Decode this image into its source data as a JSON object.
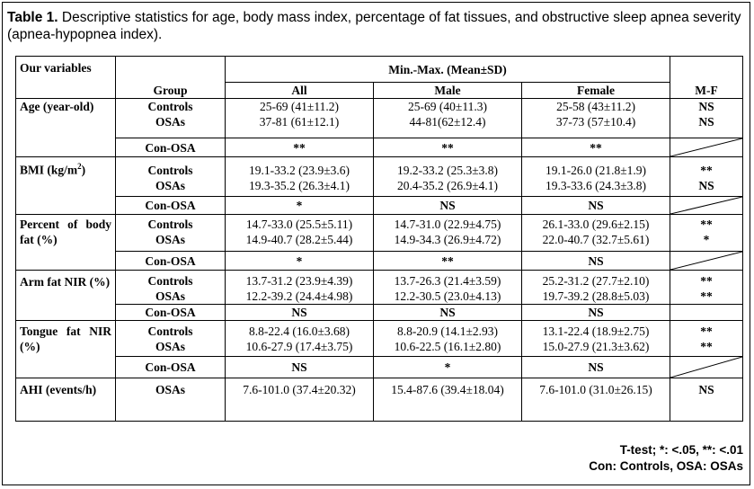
{
  "caption": {
    "label": "Table 1.",
    "text": " Descriptive statistics for age, body mass index, percentage of fat tissues, and obstructive sleep apnea severity (apnea-hypopnea index)."
  },
  "header": {
    "our_variables": "Our variables",
    "minmax": "Min.-Max. (Mean±SD)",
    "group": "Group",
    "all": "All",
    "male": "Male",
    "female": "Female",
    "mf": "M-F"
  },
  "rows": [
    {
      "variable": "Age (year-old)",
      "groups": [
        "Controls",
        "OSAs"
      ],
      "all": [
        "25-69 (41±11.2)",
        "37-81 (61±12.1)"
      ],
      "male": [
        "25-69 (40±11.3)",
        "44-81(62±12.4)"
      ],
      "female": [
        "25-58 (43±11.2)",
        "37-73 (57±10.4)"
      ],
      "mf": [
        "NS",
        "NS"
      ],
      "con_osa": {
        "label": "Con-OSA",
        "all": "**",
        "male": "**",
        "female": "**"
      }
    },
    {
      "variable": "BMI (kg/m",
      "variable_sup": "2",
      "variable_tail": ")",
      "groups": [
        "Controls",
        "OSAs"
      ],
      "all": [
        "19.1-33.2 (23.9±3.6)",
        "19.3-35.2 (26.3±4.1)"
      ],
      "male": [
        "19.2-33.2 (25.3±3.8)",
        "20.4-35.2 (26.9±4.1)"
      ],
      "female": [
        "19.1-26.0 (21.8±1.9)",
        "19.3-33.6 (24.3±3.8)"
      ],
      "mf": [
        "**",
        "NS"
      ],
      "con_osa": {
        "label": "Con-OSA",
        "all": "*",
        "male": "NS",
        "female": "NS"
      }
    },
    {
      "variable": "Percent of body fat (%)",
      "groups": [
        "Controls",
        "OSAs"
      ],
      "all": [
        "14.7-33.0 (25.5±5.11)",
        "14.9-40.7 (28.2±5.44)"
      ],
      "male": [
        "14.7-31.0 (22.9±4.75)",
        "14.9-34.3 (26.9±4.72)"
      ],
      "female": [
        "26.1-33.0 (29.6±2.15)",
        "22.0-40.7 (32.7±5.61)"
      ],
      "mf": [
        "**",
        "*"
      ],
      "con_osa": {
        "label": "Con-OSA",
        "all": "*",
        "male": "**",
        "female": "NS"
      }
    },
    {
      "variable": "Arm fat NIR (%)",
      "groups": [
        "Controls",
        "OSAs"
      ],
      "all": [
        "13.7-31.2 (23.9±4.39)",
        "12.2-39.2 (24.4±4.98)"
      ],
      "male": [
        "13.7-26.3 (21.4±3.59)",
        "12.2-30.5 (23.0±4.13)"
      ],
      "female": [
        "25.2-31.2 (27.7±2.10)",
        "19.7-39.2 (28.8±5.03)"
      ],
      "mf": [
        "**",
        "**"
      ],
      "con_osa": {
        "label": "Con-OSA",
        "all": "NS",
        "male": "NS",
        "female": "NS"
      }
    },
    {
      "variable": "Tongue fat NIR (%)",
      "groups": [
        "Controls",
        "OSAs"
      ],
      "all": [
        "8.8-22.4 (16.0±3.68)",
        "10.6-27.9 (17.4±3.75)"
      ],
      "male": [
        "8.8-20.9 (14.1±2.93)",
        "10.6-22.5 (16.1±2.80)"
      ],
      "female": [
        "13.1-22.4 (18.9±2.75)",
        "15.0-27.9 (21.3±3.62)"
      ],
      "mf": [
        "**",
        "**"
      ],
      "con_osa": {
        "label": "Con-OSA",
        "all": "NS",
        "male": "*",
        "female": "NS"
      }
    },
    {
      "variable": "AHI (events/h)",
      "groups": [
        "OSAs"
      ],
      "all": [
        "7.6-101.0 (37.4±20.32)"
      ],
      "male": [
        "15.4-87.6 (39.4±18.04)"
      ],
      "female": [
        "7.6-101.0 (31.0±26.15)"
      ],
      "mf": [
        "NS"
      ]
    }
  ],
  "footer": {
    "ttest": "T-test; *: <.05, **: <.01",
    "legend": "Con: Controls, OSA: OSAs"
  }
}
